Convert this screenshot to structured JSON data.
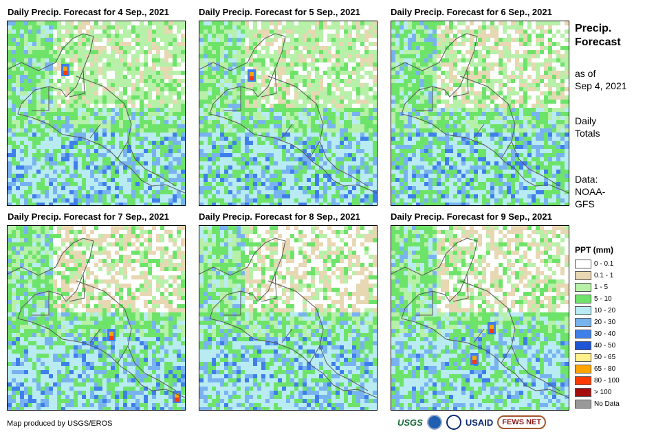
{
  "panels": [
    {
      "title": "Daily Precip. Forecast for 4 Sep., 2021"
    },
    {
      "title": "Daily Precip. Forecast for 5 Sep., 2021"
    },
    {
      "title": "Daily Precip. Forecast for 6 Sep., 2021"
    },
    {
      "title": "Daily Precip. Forecast for 7 Sep., 2021"
    },
    {
      "title": "Daily Precip. Forecast for 8 Sep., 2021"
    },
    {
      "title": "Daily Precip. Forecast for 9 Sep., 2021"
    }
  ],
  "sidebar": {
    "heading_line1": "Precip.",
    "heading_line2": "Forecast",
    "asof_line1": "as of",
    "asof_line2": "Sep 4, 2021",
    "totals_line1": "Daily",
    "totals_line2": "Totals",
    "data_line1": "Data:",
    "data_line2": "NOAA-",
    "data_line3": "GFS"
  },
  "legend": {
    "title": "PPT (mm)",
    "items": [
      {
        "label": "0 - 0.1",
        "color": "#ffffff"
      },
      {
        "label": "0.1 - 1",
        "color": "#e8d7b3"
      },
      {
        "label": "1 - 5",
        "color": "#b7f0a8"
      },
      {
        "label": "5 - 10",
        "color": "#6ee36a"
      },
      {
        "label": "10 - 20",
        "color": "#b8ecf2"
      },
      {
        "label": "20 - 30",
        "color": "#78b3f0"
      },
      {
        "label": "30 - 40",
        "color": "#3f7fea"
      },
      {
        "label": "40 - 50",
        "color": "#1e55d6"
      },
      {
        "label": "50 - 65",
        "color": "#fff08a"
      },
      {
        "label": "65 - 80",
        "color": "#ffa500"
      },
      {
        "label": "80 - 100",
        "color": "#ff3a00"
      },
      {
        "label": "> 100",
        "color": "#a30d0d"
      },
      {
        "label": "No Data",
        "color": "#999999"
      }
    ]
  },
  "footer": {
    "credit": "Map produced by USGS/EROS"
  },
  "logos": {
    "usgs": "USGS",
    "usaid": "USAID",
    "fews": "FEWS NET"
  }
}
